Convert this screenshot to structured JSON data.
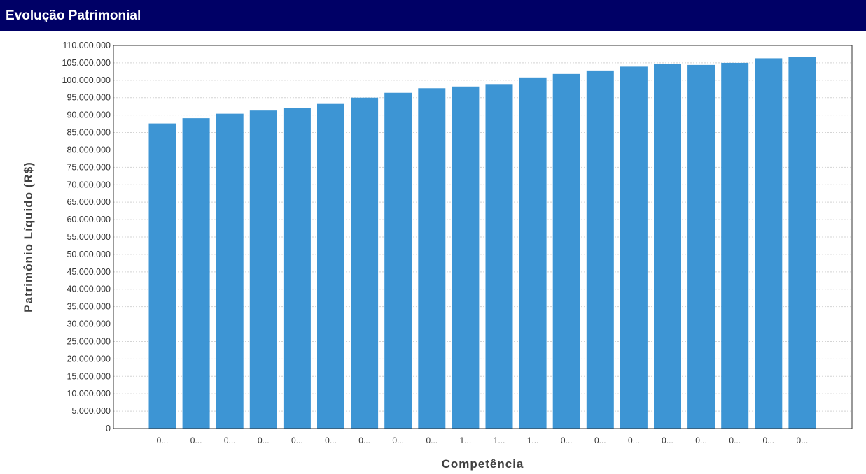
{
  "header": {
    "title": "Evolução Patrimonial"
  },
  "colors": {
    "header_bg": "#000066",
    "bar": "#3d95d4",
    "grid": "#d4d4d4"
  },
  "chart_data": {
    "type": "bar",
    "title": "",
    "xlabel": "Competência",
    "ylabel": "Patrimônio Líquido (R$)",
    "ylim": [
      0,
      110000000
    ],
    "ytick_step": 5000000,
    "ytick_labels": [
      "0",
      "5.000.000",
      "10.000.000",
      "15.000.000",
      "20.000.000",
      "25.000.000",
      "30.000.000",
      "35.000.000",
      "40.000.000",
      "45.000.000",
      "50.000.000",
      "55.000.000",
      "60.000.000",
      "65.000.000",
      "70.000.000",
      "75.000.000",
      "80.000.000",
      "85.000.000",
      "90.000.000",
      "95.000.000",
      "100.000.000",
      "105.000.000",
      "110.000.000"
    ],
    "grid": true,
    "categories": [
      "0...",
      "0...",
      "0...",
      "0...",
      "0...",
      "0...",
      "0...",
      "0...",
      "0...",
      "1...",
      "1...",
      "1...",
      "0...",
      "0...",
      "0...",
      "0...",
      "0...",
      "0...",
      "0...",
      "0..."
    ],
    "values": [
      87600000,
      89100000,
      90400000,
      91300000,
      92000000,
      93200000,
      95000000,
      96400000,
      97700000,
      98200000,
      98900000,
      100800000,
      101800000,
      102800000,
      103900000,
      104700000,
      104400000,
      105000000,
      106300000,
      106600000
    ]
  }
}
